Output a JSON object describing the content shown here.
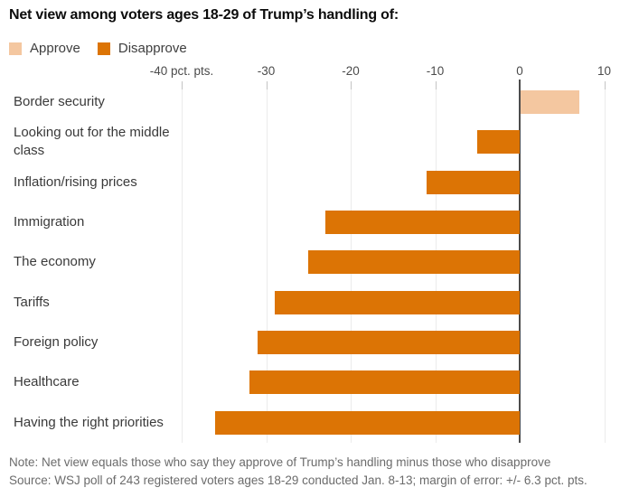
{
  "title": "Net view among voters ages 18-29 of Trump’s handling of:",
  "legend": [
    {
      "label": "Approve",
      "color": "#F4C7A0"
    },
    {
      "label": "Disapprove",
      "color": "#DC7405"
    }
  ],
  "chart_data": {
    "type": "bar",
    "orientation": "horizontal",
    "title": "Net view among voters ages 18-29 of Trump’s handling of:",
    "categories": [
      "Border security",
      "Looking out for the middle class",
      "Inflation/rising prices",
      "Immigration",
      "The economy",
      "Tariffs",
      "Foreign policy",
      "Healthcare",
      "Having the right priorities"
    ],
    "values": [
      7,
      -5,
      -11,
      -23,
      -25,
      -29,
      -31,
      -32,
      -36
    ],
    "value_unit": "pct. pts.",
    "positive_series": "Approve",
    "negative_series": "Disapprove",
    "colors": {
      "approve": "#F4C7A0",
      "disapprove": "#DC7405"
    },
    "x_ticks": [
      -40,
      -30,
      -20,
      -10,
      0,
      10
    ],
    "x_tick_labels": [
      "-40 pct. pts.",
      "-30",
      "-20",
      "-10",
      "0",
      "10"
    ],
    "xlim": [
      -44,
      12
    ],
    "grid": true,
    "legend_position": "top-left"
  },
  "footer": {
    "note": "Note: Net view equals those who say they approve of Trump’s handling minus those who disapprove",
    "source": "Source: WSJ poll of 243 registered voters ages 18-29 conducted Jan. 8-13; margin of error: +/- 6.3 pct. pts."
  }
}
